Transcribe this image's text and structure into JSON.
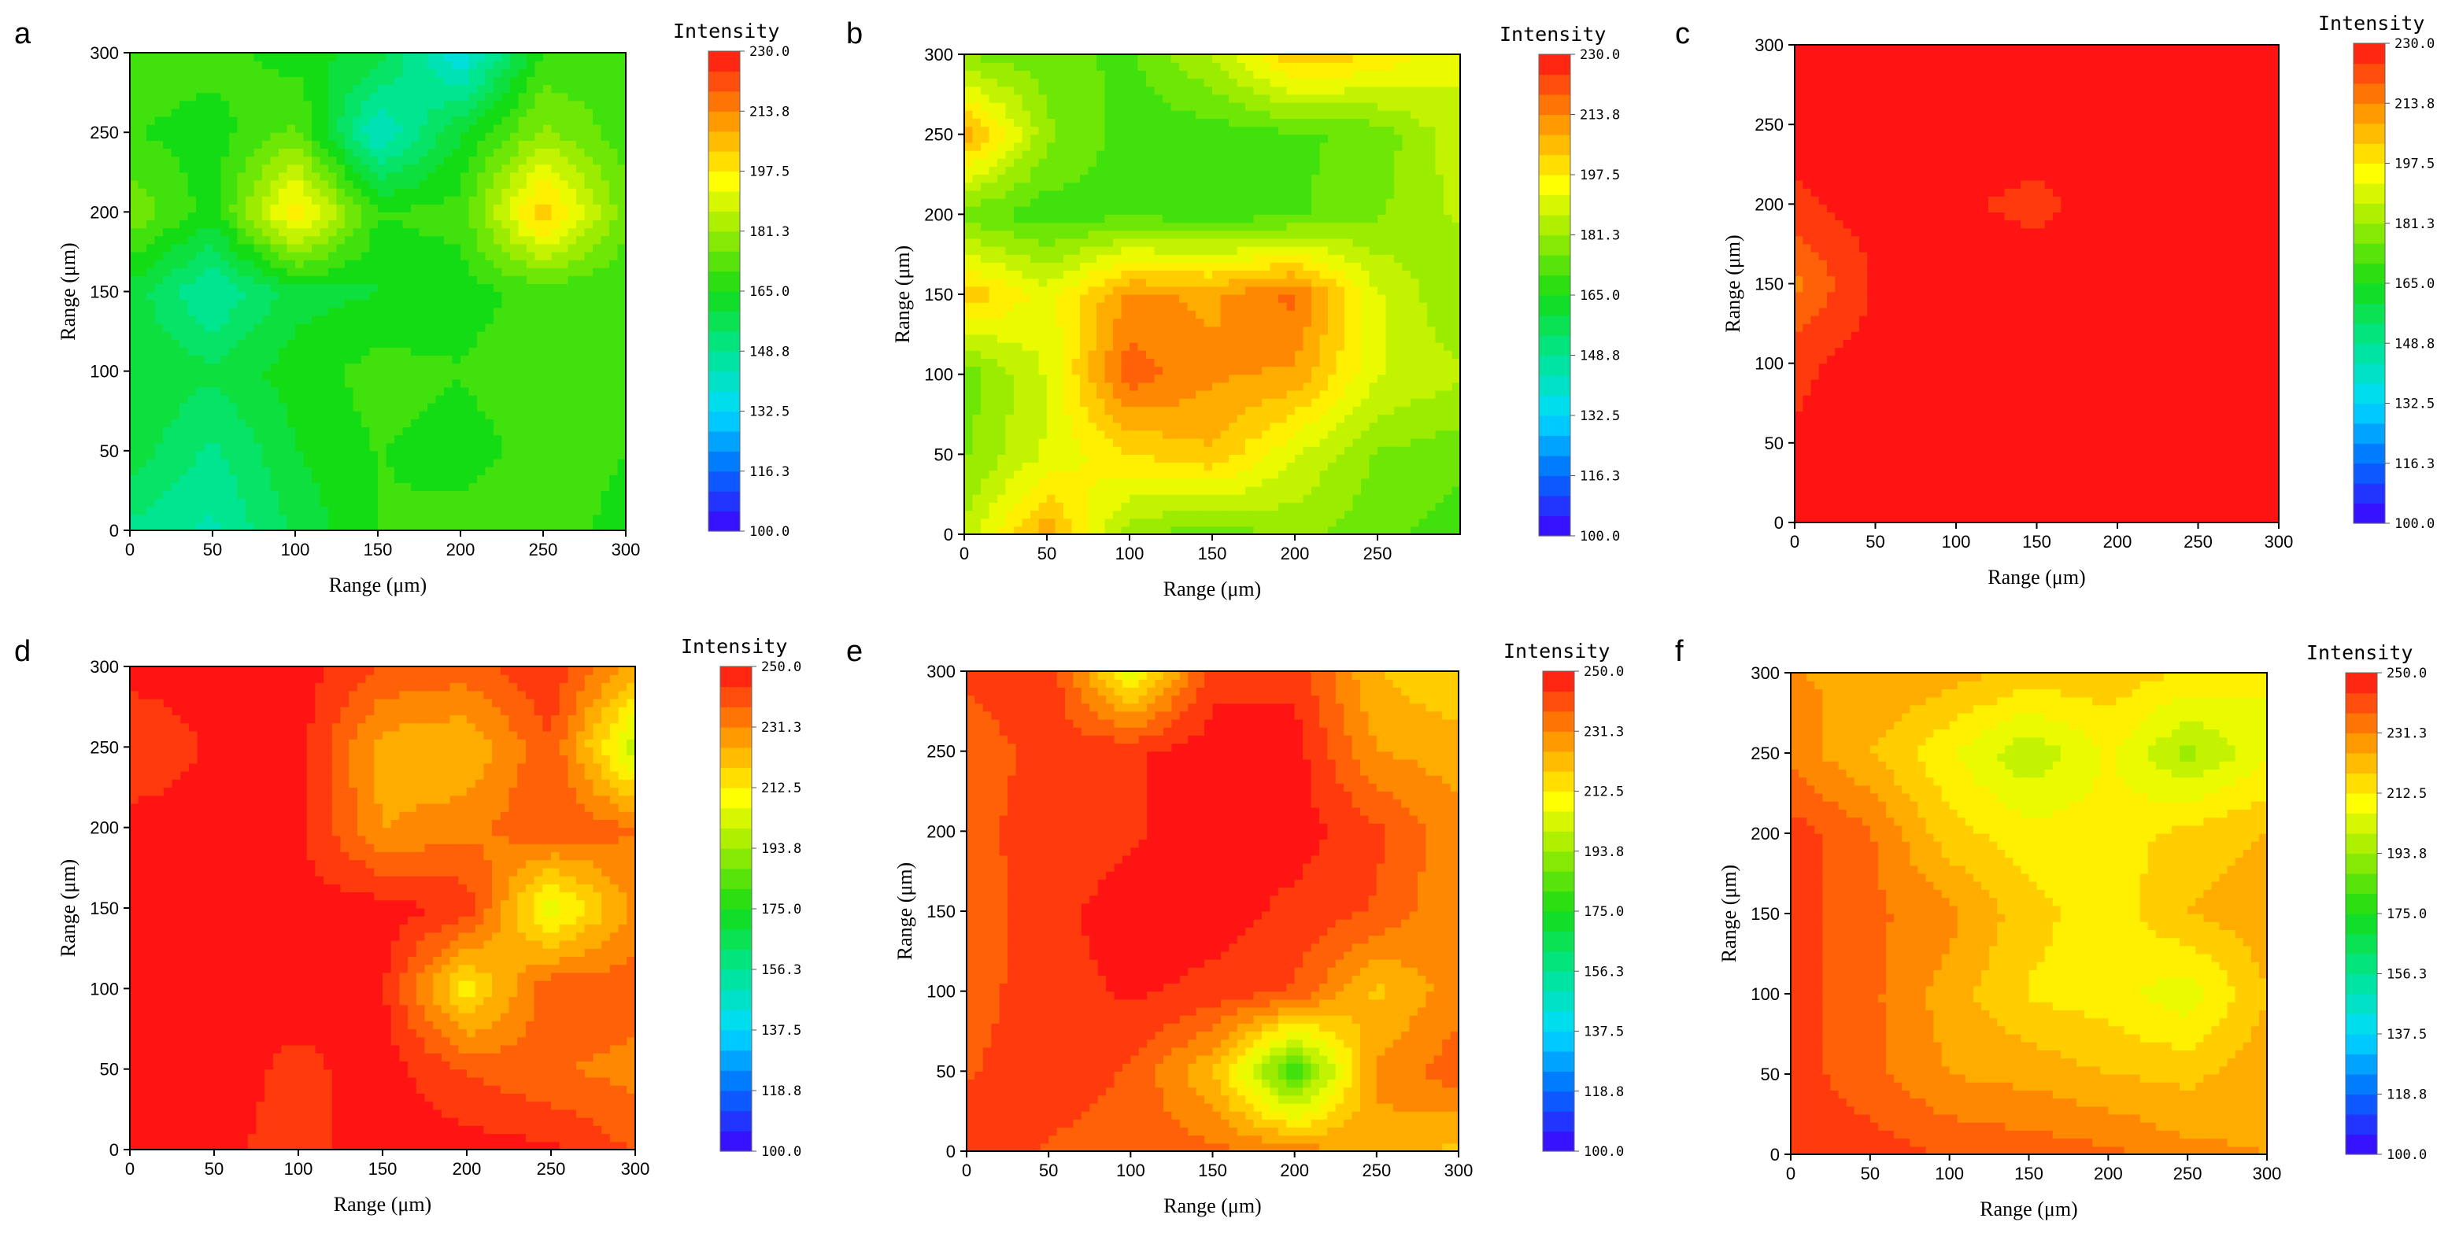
{
  "figure": {
    "panel_count": 6
  },
  "chart_data": [
    {
      "panel": "a",
      "type": "heatmap",
      "xlabel": "Range (μm)",
      "ylabel": "Range (μm)",
      "xlim": [
        0,
        300
      ],
      "ylim": [
        0,
        300
      ],
      "xticks": [
        "0",
        "50",
        "100",
        "150",
        "200",
        "250",
        "300"
      ],
      "yticks": [
        "0",
        "50",
        "100",
        "150",
        "200",
        "250",
        "300"
      ],
      "colorbar": {
        "title": "Intensity",
        "min": 100,
        "max": 230,
        "ticks": [
          "100.0",
          "116.3",
          "132.5",
          "148.8",
          "165.0",
          "181.3",
          "197.5",
          "213.8",
          "230.0"
        ]
      },
      "z": [
        [
          150,
          145,
          158,
          168,
          170,
          172,
          165
        ],
        [
          160,
          150,
          162,
          168,
          165,
          170,
          168
        ],
        [
          162,
          158,
          165,
          170,
          168,
          172,
          168
        ],
        [
          160,
          145,
          160,
          162,
          165,
          170,
          168
        ],
        [
          178,
          165,
          200,
          168,
          170,
          205,
          175
        ],
        [
          168,
          165,
          175,
          140,
          162,
          180,
          170
        ],
        [
          172,
          170,
          165,
          160,
          135,
          168,
          170
        ]
      ]
    },
    {
      "panel": "b",
      "type": "heatmap",
      "xlabel": "Range (μm)",
      "ylabel": "Range (μm)",
      "xlim": [
        0,
        300
      ],
      "ylim": [
        0,
        300
      ],
      "xticks": [
        "0",
        "50",
        "100",
        "150",
        "200",
        "250"
      ],
      "yticks": [
        "0",
        "50",
        "100",
        "150",
        "200",
        "250",
        "300"
      ],
      "colorbar": {
        "title": "Intensity",
        "min": 100,
        "max": 230,
        "ticks": [
          "100.0",
          "116.3",
          "132.5",
          "148.8",
          "165.0",
          "181.3",
          "197.5",
          "213.8",
          "230.0"
        ]
      },
      "z": [
        [
          185,
          210,
          180,
          175,
          180,
          175,
          170
        ],
        [
          178,
          190,
          200,
          205,
          190,
          178,
          175
        ],
        [
          175,
          190,
          220,
          212,
          210,
          190,
          185
        ],
        [
          205,
          192,
          212,
          210,
          218,
          190,
          178
        ],
        [
          175,
          170,
          172,
          170,
          172,
          178,
          185
        ],
        [
          210,
          180,
          170,
          170,
          172,
          175,
          188
        ],
        [
          178,
          175,
          172,
          185,
          205,
          200,
          190
        ]
      ]
    },
    {
      "panel": "c",
      "type": "heatmap",
      "xlabel": "Range (μm)",
      "ylabel": "Range (μm)",
      "xlim": [
        0,
        300
      ],
      "ylim": [
        0,
        300
      ],
      "xticks": [
        "0",
        "50",
        "100",
        "150",
        "200",
        "250",
        "300"
      ],
      "yticks": [
        "0",
        "50",
        "100",
        "150",
        "200",
        "250",
        "300"
      ],
      "colorbar": {
        "title": "Intensity",
        "min": 100,
        "max": 230,
        "ticks": [
          "100.0",
          "116.3",
          "132.5",
          "148.8",
          "165.0",
          "181.3",
          "197.5",
          "213.8",
          "230.0"
        ]
      },
      "z": [
        [
          228,
          230,
          230,
          230,
          230,
          230,
          228
        ],
        [
          228,
          230,
          230,
          230,
          230,
          230,
          230
        ],
        [
          226,
          230,
          230,
          230,
          230,
          230,
          230
        ],
        [
          215,
          228,
          230,
          230,
          230,
          230,
          230
        ],
        [
          226,
          230,
          228,
          226,
          230,
          230,
          230
        ],
        [
          230,
          228,
          230,
          230,
          230,
          230,
          230
        ],
        [
          230,
          230,
          230,
          230,
          230,
          230,
          230
        ]
      ]
    },
    {
      "panel": "d",
      "type": "heatmap",
      "xlabel": "Range (μm)",
      "ylabel": "Range (μm)",
      "xlim": [
        0,
        300
      ],
      "ylim": [
        0,
        300
      ],
      "xticks": [
        "0",
        "50",
        "100",
        "150",
        "200",
        "250",
        "300"
      ],
      "yticks": [
        "0",
        "50",
        "100",
        "150",
        "200",
        "250",
        "300"
      ],
      "colorbar": {
        "title": "Intensity",
        "min": 100,
        "max": 250,
        "ticks": [
          "100.0",
          "118.8",
          "137.5",
          "156.3",
          "175.0",
          "193.8",
          "212.5",
          "231.3",
          "250.0"
        ]
      },
      "z": [
        [
          250,
          248,
          245,
          250,
          250,
          248,
          240
        ],
        [
          250,
          250,
          245,
          250,
          240,
          235,
          232
        ],
        [
          250,
          250,
          250,
          248,
          212,
          240,
          238
        ],
        [
          250,
          250,
          250,
          250,
          245,
          205,
          230
        ],
        [
          250,
          250,
          248,
          228,
          232,
          240,
          235
        ],
        [
          240,
          248,
          250,
          225,
          222,
          240,
          198
        ],
        [
          250,
          250,
          250,
          240,
          238,
          246,
          225
        ]
      ]
    },
    {
      "panel": "e",
      "type": "heatmap",
      "xlabel": "Range (μm)",
      "ylabel": "Range (μm)",
      "xlim": [
        0,
        300
      ],
      "ylim": [
        0,
        300
      ],
      "xticks": [
        "0",
        "50",
        "100",
        "150",
        "200",
        "250",
        "300"
      ],
      "yticks": [
        "0",
        "50",
        "100",
        "150",
        "200",
        "250",
        "300"
      ],
      "colorbar": {
        "title": "Intensity",
        "min": 100,
        "max": 250,
        "ticks": [
          "100.0",
          "118.8",
          "137.5",
          "156.3",
          "175.0",
          "193.8",
          "212.5",
          "231.3",
          "250.0"
        ]
      },
      "z": [
        [
          245,
          240,
          238,
          236,
          232,
          225,
          220
        ],
        [
          240,
          244,
          240,
          222,
          178,
          230,
          238
        ],
        [
          238,
          244,
          248,
          245,
          240,
          220,
          232
        ],
        [
          236,
          245,
          250,
          250,
          245,
          240,
          228
        ],
        [
          240,
          242,
          246,
          250,
          250,
          242,
          230
        ],
        [
          236,
          244,
          246,
          250,
          250,
          228,
          225
        ],
        [
          242,
          246,
          205,
          245,
          245,
          222,
          216
        ]
      ]
    },
    {
      "panel": "f",
      "type": "heatmap",
      "xlabel": "Range (μm)",
      "ylabel": "Range (μm)",
      "xlim": [
        0,
        300
      ],
      "ylim": [
        0,
        300
      ],
      "xticks": [
        "0",
        "50",
        "100",
        "150",
        "200",
        "250",
        "300"
      ],
      "yticks": [
        "0",
        "50",
        "100",
        "150",
        "200",
        "250",
        "300"
      ],
      "colorbar": {
        "title": "Intensity",
        "min": 100,
        "max": 250,
        "ticks": [
          "100.0",
          "118.8",
          "137.5",
          "156.3",
          "175.0",
          "193.8",
          "212.5",
          "231.3",
          "250.0"
        ]
      },
      "z": [
        [
          246,
          244,
          240,
          238,
          236,
          230,
          228
        ],
        [
          244,
          236,
          228,
          226,
          222,
          220,
          226
        ],
        [
          244,
          236,
          225,
          215,
          212,
          205,
          222
        ],
        [
          244,
          236,
          230,
          218,
          212,
          222,
          226
        ],
        [
          244,
          235,
          218,
          212,
          212,
          218,
          222
        ],
        [
          232,
          222,
          210,
          198,
          210,
          195,
          208
        ],
        [
          228,
          228,
          225,
          220,
          220,
          215,
          210
        ]
      ]
    }
  ]
}
